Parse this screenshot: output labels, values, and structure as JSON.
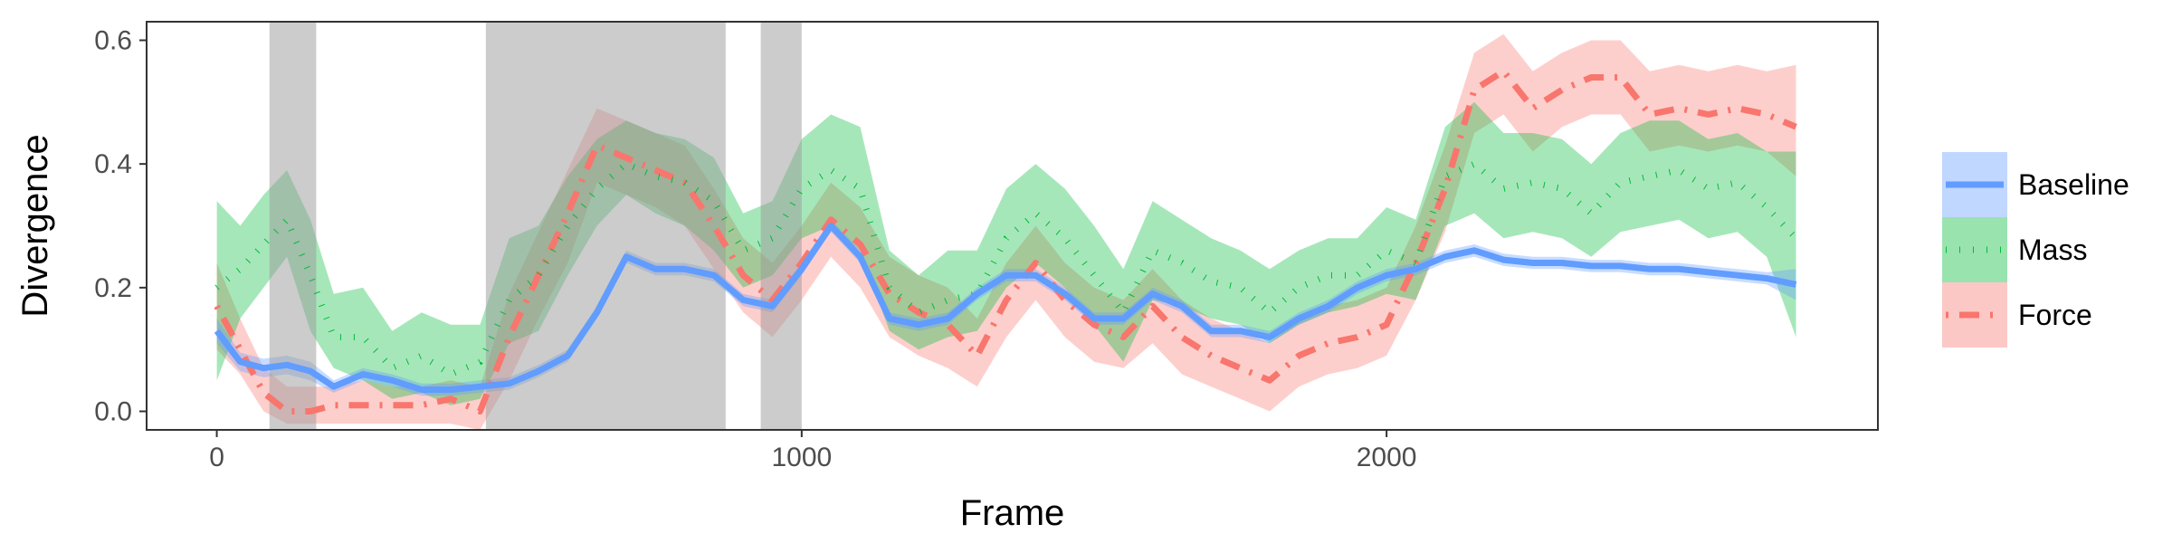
{
  "chart_data": {
    "type": "line",
    "xlabel": "Frame",
    "ylabel": "Divergence",
    "xlim": [
      -120,
      2840
    ],
    "ylim": [
      -0.03,
      0.63
    ],
    "xticks": [
      0,
      1000,
      2000
    ],
    "yticks": [
      0.0,
      0.2,
      0.4,
      0.6
    ],
    "xtick_labels": [
      "0",
      "1000",
      "2000"
    ],
    "ytick_labels": [
      "0.0",
      "0.2",
      "0.4",
      "0.6"
    ],
    "grid": false,
    "legend": {
      "position": "right",
      "entries": [
        "Baseline",
        "Mass",
        "Force"
      ]
    },
    "shaded_regions": [
      [
        90,
        170
      ],
      [
        460,
        870
      ],
      [
        930,
        1000
      ]
    ],
    "x": [
      0,
      40,
      80,
      120,
      160,
      200,
      250,
      300,
      350,
      400,
      450,
      500,
      550,
      600,
      650,
      700,
      750,
      800,
      850,
      900,
      950,
      1000,
      1050,
      1100,
      1150,
      1200,
      1250,
      1300,
      1350,
      1400,
      1450,
      1500,
      1550,
      1600,
      1650,
      1700,
      1750,
      1800,
      1850,
      1900,
      1950,
      2000,
      2050,
      2100,
      2150,
      2200,
      2250,
      2300,
      2350,
      2400,
      2450,
      2500,
      2550,
      2600,
      2650,
      2700
    ],
    "series": [
      {
        "name": "Baseline",
        "color": "#619CFF",
        "style": "solid",
        "values": [
          0.13,
          0.08,
          0.07,
          0.075,
          0.065,
          0.04,
          0.06,
          0.05,
          0.035,
          0.035,
          0.04,
          0.045,
          0.065,
          0.09,
          0.16,
          0.25,
          0.23,
          0.23,
          0.22,
          0.18,
          0.17,
          0.23,
          0.3,
          0.25,
          0.15,
          0.14,
          0.15,
          0.19,
          0.22,
          0.22,
          0.19,
          0.15,
          0.15,
          0.19,
          0.17,
          0.13,
          0.13,
          0.12,
          0.15,
          0.17,
          0.2,
          0.22,
          0.23,
          0.25,
          0.26,
          0.245,
          0.24,
          0.24,
          0.235,
          0.235,
          0.23,
          0.23,
          0.225,
          0.22,
          0.215,
          0.205
        ],
        "lower": [
          0.11,
          0.065,
          0.055,
          0.06,
          0.05,
          0.03,
          0.05,
          0.04,
          0.025,
          0.025,
          0.03,
          0.035,
          0.055,
          0.08,
          0.15,
          0.24,
          0.22,
          0.22,
          0.21,
          0.17,
          0.16,
          0.22,
          0.29,
          0.24,
          0.14,
          0.13,
          0.14,
          0.18,
          0.21,
          0.21,
          0.18,
          0.14,
          0.14,
          0.18,
          0.16,
          0.12,
          0.12,
          0.11,
          0.14,
          0.16,
          0.19,
          0.21,
          0.22,
          0.24,
          0.25,
          0.235,
          0.23,
          0.23,
          0.225,
          0.225,
          0.22,
          0.22,
          0.215,
          0.21,
          0.205,
          0.18
        ],
        "upper": [
          0.15,
          0.095,
          0.085,
          0.09,
          0.08,
          0.05,
          0.07,
          0.06,
          0.045,
          0.045,
          0.05,
          0.055,
          0.075,
          0.1,
          0.17,
          0.26,
          0.24,
          0.24,
          0.23,
          0.19,
          0.18,
          0.24,
          0.31,
          0.26,
          0.16,
          0.15,
          0.16,
          0.2,
          0.23,
          0.23,
          0.2,
          0.16,
          0.16,
          0.2,
          0.18,
          0.14,
          0.14,
          0.13,
          0.16,
          0.18,
          0.21,
          0.23,
          0.24,
          0.26,
          0.27,
          0.255,
          0.25,
          0.25,
          0.245,
          0.245,
          0.24,
          0.24,
          0.235,
          0.23,
          0.225,
          0.23
        ]
      },
      {
        "name": "Mass",
        "color": "#00BA38",
        "style": "dotted",
        "values": [
          0.2,
          0.23,
          0.27,
          0.31,
          0.22,
          0.12,
          0.12,
          0.07,
          0.09,
          0.06,
          0.08,
          0.18,
          0.22,
          0.3,
          0.36,
          0.4,
          0.38,
          0.37,
          0.34,
          0.26,
          0.28,
          0.36,
          0.39,
          0.36,
          0.2,
          0.16,
          0.18,
          0.19,
          0.28,
          0.32,
          0.28,
          0.22,
          0.16,
          0.26,
          0.24,
          0.21,
          0.2,
          0.16,
          0.2,
          0.22,
          0.22,
          0.26,
          0.24,
          0.38,
          0.4,
          0.36,
          0.37,
          0.36,
          0.32,
          0.37,
          0.38,
          0.39,
          0.36,
          0.37,
          0.33,
          0.28
        ],
        "lower": [
          0.05,
          0.15,
          0.2,
          0.25,
          0.13,
          0.07,
          0.05,
          0.02,
          0.03,
          0.01,
          0.02,
          0.11,
          0.13,
          0.22,
          0.3,
          0.35,
          0.32,
          0.3,
          0.26,
          0.2,
          0.22,
          0.28,
          0.3,
          0.26,
          0.13,
          0.1,
          0.12,
          0.13,
          0.2,
          0.24,
          0.2,
          0.14,
          0.08,
          0.18,
          0.17,
          0.15,
          0.14,
          0.11,
          0.14,
          0.16,
          0.17,
          0.19,
          0.18,
          0.3,
          0.32,
          0.28,
          0.29,
          0.28,
          0.25,
          0.29,
          0.3,
          0.31,
          0.28,
          0.29,
          0.25,
          0.12
        ],
        "upper": [
          0.34,
          0.3,
          0.35,
          0.39,
          0.31,
          0.19,
          0.2,
          0.13,
          0.16,
          0.14,
          0.14,
          0.28,
          0.3,
          0.38,
          0.44,
          0.47,
          0.45,
          0.44,
          0.41,
          0.32,
          0.34,
          0.44,
          0.48,
          0.46,
          0.26,
          0.22,
          0.26,
          0.26,
          0.36,
          0.4,
          0.36,
          0.3,
          0.23,
          0.34,
          0.31,
          0.28,
          0.26,
          0.23,
          0.26,
          0.28,
          0.28,
          0.33,
          0.31,
          0.46,
          0.5,
          0.45,
          0.45,
          0.44,
          0.4,
          0.45,
          0.47,
          0.47,
          0.44,
          0.45,
          0.42,
          0.42
        ]
      },
      {
        "name": "Force",
        "color": "#F8766D",
        "style": "dotdash",
        "values": [
          0.17,
          0.1,
          0.03,
          0.0,
          0.0,
          0.01,
          0.01,
          0.01,
          0.01,
          0.02,
          0.0,
          0.12,
          0.22,
          0.32,
          0.43,
          0.41,
          0.39,
          0.37,
          0.3,
          0.22,
          0.18,
          0.24,
          0.31,
          0.27,
          0.19,
          0.16,
          0.14,
          0.09,
          0.18,
          0.24,
          0.18,
          0.14,
          0.12,
          0.17,
          0.12,
          0.09,
          0.07,
          0.05,
          0.09,
          0.11,
          0.12,
          0.14,
          0.24,
          0.36,
          0.52,
          0.55,
          0.49,
          0.52,
          0.54,
          0.54,
          0.48,
          0.49,
          0.48,
          0.49,
          0.48,
          0.46
        ],
        "lower": [
          0.1,
          0.06,
          0.0,
          -0.02,
          -0.02,
          -0.02,
          -0.02,
          -0.02,
          -0.02,
          -0.02,
          -0.03,
          0.05,
          0.15,
          0.24,
          0.37,
          0.35,
          0.33,
          0.3,
          0.23,
          0.16,
          0.12,
          0.18,
          0.25,
          0.2,
          0.12,
          0.09,
          0.07,
          0.04,
          0.12,
          0.18,
          0.12,
          0.08,
          0.07,
          0.11,
          0.06,
          0.04,
          0.02,
          0.0,
          0.04,
          0.06,
          0.07,
          0.09,
          0.18,
          0.29,
          0.45,
          0.48,
          0.42,
          0.46,
          0.48,
          0.48,
          0.42,
          0.43,
          0.42,
          0.43,
          0.42,
          0.38
        ],
        "upper": [
          0.24,
          0.15,
          0.07,
          0.04,
          0.04,
          0.04,
          0.05,
          0.04,
          0.04,
          0.05,
          0.04,
          0.19,
          0.29,
          0.39,
          0.49,
          0.47,
          0.45,
          0.43,
          0.36,
          0.28,
          0.24,
          0.3,
          0.37,
          0.33,
          0.25,
          0.22,
          0.2,
          0.15,
          0.24,
          0.3,
          0.24,
          0.2,
          0.18,
          0.23,
          0.18,
          0.15,
          0.13,
          0.11,
          0.15,
          0.17,
          0.18,
          0.2,
          0.3,
          0.43,
          0.58,
          0.61,
          0.55,
          0.58,
          0.6,
          0.6,
          0.55,
          0.56,
          0.55,
          0.56,
          0.55,
          0.56
        ]
      }
    ]
  }
}
